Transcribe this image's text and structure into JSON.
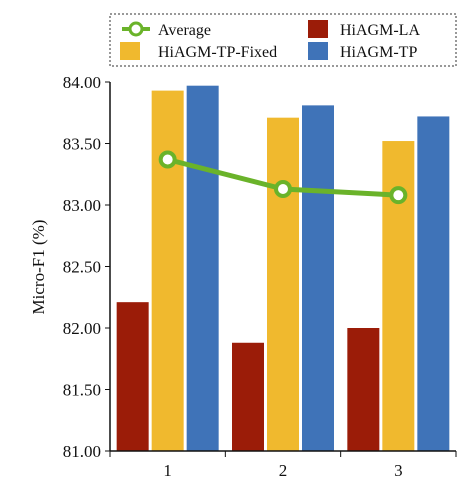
{
  "chart_data": {
    "type": "bar",
    "categories": [
      "1",
      "2",
      "3"
    ],
    "series": [
      {
        "name": "HiAGM-LA",
        "color": "#9b1c08",
        "values": [
          82.21,
          81.88,
          82.0
        ]
      },
      {
        "name": "HiAGM-TP-Fixed",
        "color": "#f0b92e",
        "values": [
          83.93,
          83.71,
          83.52
        ]
      },
      {
        "name": "HiAGM-TP",
        "color": "#3f73b8",
        "values": [
          83.97,
          83.81,
          83.72
        ]
      }
    ],
    "line_series": {
      "name": "Average",
      "color": "#6ab32a",
      "values": [
        83.37,
        83.13,
        83.08
      ]
    },
    "ylabel": "Micro-F1 (%)",
    "ylim": [
      81.0,
      84.0
    ],
    "yticks": [
      "81.00",
      "81.50",
      "82.00",
      "82.50",
      "83.00",
      "83.50",
      "84.00"
    ],
    "grid": false,
    "legend_position": "top"
  }
}
